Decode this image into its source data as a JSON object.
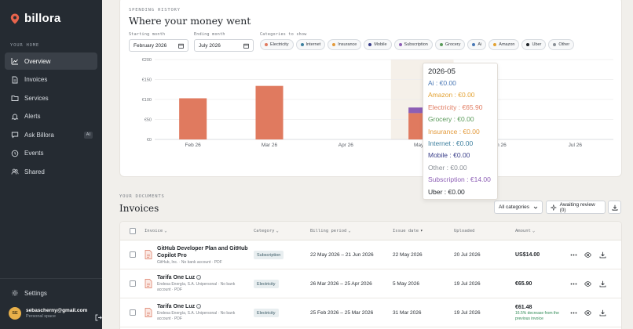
{
  "sidebar": {
    "brand": "billora",
    "section_label": "YOUR HOME",
    "items": [
      {
        "label": "Overview",
        "icon": "chart-line-icon",
        "active": true
      },
      {
        "label": "Invoices",
        "icon": "document-icon"
      },
      {
        "label": "Services",
        "icon": "folder-icon"
      },
      {
        "label": "Alerts",
        "icon": "bell-icon"
      },
      {
        "label": "Ask Billora",
        "icon": "chat-icon",
        "badge": "AI"
      },
      {
        "label": "Events",
        "icon": "clock-icon"
      },
      {
        "label": "Shared",
        "icon": "users-icon"
      }
    ],
    "settings": "Settings",
    "user": {
      "initials": "SE",
      "email": "sebascherny@gmail.com",
      "space": "Personal space"
    }
  },
  "history": {
    "eyebrow": "SPENDING HISTORY",
    "title": "Where your money went",
    "start_label": "Starting month",
    "start_value": "February 2026",
    "end_label": "Ending month",
    "end_value": "July 2026",
    "categories_label": "Categories to show",
    "chips": [
      {
        "label": "Electricity",
        "color": "#e07a5f"
      },
      {
        "label": "Internet",
        "color": "#3d7f9e"
      },
      {
        "label": "Insurance",
        "color": "#e39a3b"
      },
      {
        "label": "Mobile",
        "color": "#3a3f8a"
      },
      {
        "label": "Subscription",
        "color": "#8d5fb5"
      },
      {
        "label": "Grocery",
        "color": "#5a9a5a"
      },
      {
        "label": "Ai",
        "color": "#4a78b5"
      },
      {
        "label": "Amazon",
        "color": "#e3a232"
      },
      {
        "label": "Uber",
        "color": "#1f2328"
      },
      {
        "label": "Other",
        "color": "#8a8f96"
      }
    ]
  },
  "chart_data": {
    "type": "bar",
    "stacked": true,
    "categories": [
      "Feb 26",
      "Mar 26",
      "Apr 26",
      "May 26",
      "Jun 26",
      "Jul 26"
    ],
    "series": [
      {
        "name": "Electricity",
        "color": "#e07a5f",
        "values": [
          103,
          134,
          0,
          65.9,
          0,
          0
        ]
      },
      {
        "name": "Subscription",
        "color": "#8d5fb5",
        "values": [
          0,
          0,
          0,
          14.0,
          0,
          0
        ]
      }
    ],
    "yticks": [
      "€0",
      "€50",
      "€100",
      "€150",
      "€200"
    ],
    "ylim": [
      0,
      200
    ],
    "highlighted_category": "May 26",
    "grid": true
  },
  "tooltip": {
    "title": "2026-05",
    "rows": [
      {
        "text": "Ai : €0.00",
        "color": "#4a78b5"
      },
      {
        "text": "Amazon : €0.00",
        "color": "#e3a232"
      },
      {
        "text": "Electricity : €65.90",
        "color": "#e07a5f"
      },
      {
        "text": "Grocery : €0.00",
        "color": "#5a9a5a"
      },
      {
        "text": "Insurance : €0.00",
        "color": "#e39a3b"
      },
      {
        "text": "Internet : €0.00",
        "color": "#3d7f9e"
      },
      {
        "text": "Mobile : €0.00",
        "color": "#3a3f8a"
      },
      {
        "text": "Other : €0.00",
        "color": "#8a8f96"
      },
      {
        "text": "Subscription : €14.00",
        "color": "#8d5fb5"
      },
      {
        "text": "Uber : €0.00",
        "color": "#1f2328"
      }
    ]
  },
  "documents": {
    "eyebrow": "YOUR DOCUMENTS",
    "title": "Invoices",
    "filter": "All categories",
    "awaiting": "Awaiting review (0)",
    "columns": [
      "Invoice",
      "Category",
      "Billing period",
      "Issue date",
      "Uploaded",
      "Amount"
    ],
    "rows": [
      {
        "name": "GitHub Developer Plan and GitHub Copilot Pro",
        "sub": "GitHub, Inc. · No bank account · PDF",
        "category": "Subscription",
        "period": "22 May 2026 – 21 Jun 2026",
        "issue": "22 May 2026",
        "uploaded": "20 Jul 2026",
        "amount": "US$14.00",
        "note": ""
      },
      {
        "name": "Tarifa One Luz",
        "sub": "Endesa Energía, S.A. Unipersonal · No bank account · PDF",
        "category": "Electricity",
        "period": "26 Mar 2026 – 25 Apr 2026",
        "issue": "5 May 2026",
        "uploaded": "19 Jul 2026",
        "amount": "€65.90",
        "note": ""
      },
      {
        "name": "Tarifa One Luz",
        "sub": "Endesa Energía, S.A. Unipersonal · No bank account · PDF",
        "category": "Electricity",
        "period": "25 Feb 2026 – 25 Mar 2026",
        "issue": "31 Mar 2026",
        "uploaded": "19 Jul 2026",
        "amount": "€61.48",
        "note": "16.5% decrease from the previous invoice"
      }
    ]
  }
}
